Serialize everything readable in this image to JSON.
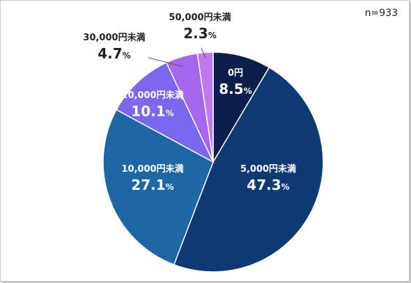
{
  "sample_size": "n=933",
  "chart_data": {
    "type": "pie",
    "percent_sign": "%",
    "slices": [
      {
        "label": "0円",
        "value": 8.5,
        "value_text": "8.5",
        "color": "#0b1f4d",
        "label_color": "#ffffff"
      },
      {
        "label": "5,000円未満",
        "value": 47.3,
        "value_text": "47.3",
        "color": "#0e3a73",
        "label_color": "#ffffff"
      },
      {
        "label": "10,000円未満",
        "value": 27.1,
        "value_text": "27.1",
        "color": "#1e67a7",
        "label_color": "#ffffff"
      },
      {
        "label": "20,000円未満",
        "value": 10.1,
        "value_text": "10.1",
        "color": "#7a66ef",
        "label_color": "#ffffff"
      },
      {
        "label": "30,000円未満",
        "value": 4.7,
        "value_text": "4.7",
        "color": "#a366ee",
        "label_color": "#222222"
      },
      {
        "label": "50,000円未満",
        "value": 2.3,
        "value_text": "2.3",
        "color": "#c07af0",
        "label_color": "#222222"
      }
    ]
  }
}
